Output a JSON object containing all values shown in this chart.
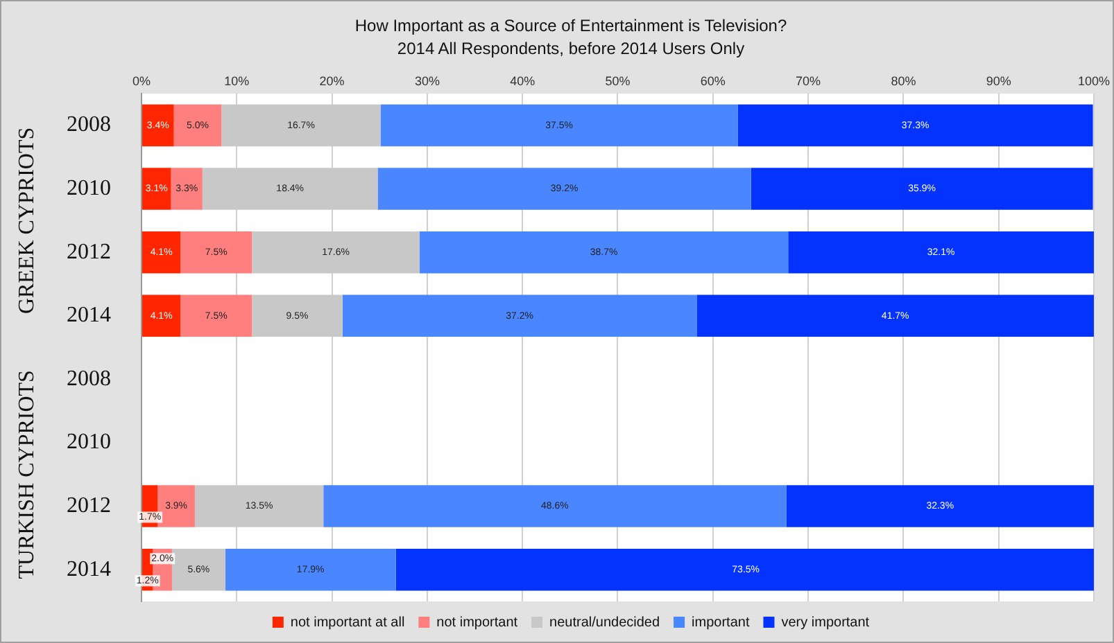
{
  "chart_data": {
    "type": "bar",
    "orientation": "horizontal",
    "stacked": true,
    "title": "How Important as a Source of Entertainment is Television?",
    "subtitle": "2014 All Respondents, before 2014 Users Only",
    "categories": [
      "2008",
      "2010",
      "2012",
      "2014",
      "2008",
      "2010",
      "2012",
      "2014"
    ],
    "annotations": [
      "GREEK CYPRIOTS",
      "TURKISH CYPRIOTS"
    ],
    "series": [
      {
        "name": "not important at all",
        "color": "#ff2600",
        "values": [
          3.4,
          3.1,
          4.1,
          4.1,
          null,
          null,
          1.7,
          1.2
        ],
        "value_labels": [
          "3.4%",
          "3.1%",
          "4.1%",
          "4.1%",
          null,
          null,
          "1.7%",
          "1.2%"
        ]
      },
      {
        "name": "not important",
        "color": "#ff7f7f",
        "values": [
          5.0,
          3.3,
          7.5,
          7.5,
          null,
          null,
          3.9,
          2.0
        ],
        "value_labels": [
          "5.0%",
          "3.3%",
          "7.5%",
          "7.5%",
          null,
          null,
          "3.9%",
          "2.0%"
        ]
      },
      {
        "name": "neutral/undecided",
        "color": "#c8c8c8",
        "values": [
          16.7,
          18.4,
          17.6,
          9.5,
          null,
          null,
          13.5,
          5.6
        ],
        "value_labels": [
          "16.7%",
          "18.4%",
          "17.6%",
          "9.5%",
          null,
          null,
          "13.5%",
          "5.6%"
        ]
      },
      {
        "name": "important",
        "color": "#4a86ff",
        "values": [
          37.5,
          39.2,
          38.7,
          37.2,
          null,
          null,
          48.6,
          17.9
        ],
        "value_labels": [
          "37.5%",
          "39.2%",
          "38.7%",
          "37.2%",
          null,
          null,
          "48.6%",
          "17.9%"
        ]
      },
      {
        "name": "very important",
        "color": "#0433ff",
        "values": [
          37.3,
          35.9,
          32.1,
          41.7,
          null,
          null,
          32.3,
          73.5
        ],
        "value_labels": [
          "37.3%",
          "35.9%",
          "32.1%",
          "41.7%",
          null,
          null,
          "32.3%",
          "73.5%"
        ]
      }
    ],
    "xlim": [
      0,
      100
    ],
    "xticks": [
      {
        "value": 0,
        "label": "0%"
      },
      {
        "value": 10,
        "label": "10%"
      },
      {
        "value": 20,
        "label": "20%"
      },
      {
        "value": 30,
        "label": "30%"
      },
      {
        "value": 40,
        "label": "40%"
      },
      {
        "value": 50,
        "label": "50%"
      },
      {
        "value": 60,
        "label": "60%"
      },
      {
        "value": 70,
        "label": "70%"
      },
      {
        "value": 80,
        "label": "80%"
      },
      {
        "value": 90,
        "label": "90%"
      },
      {
        "value": 100,
        "label": "100%"
      }
    ],
    "grid": "x",
    "legend": "bottom"
  }
}
